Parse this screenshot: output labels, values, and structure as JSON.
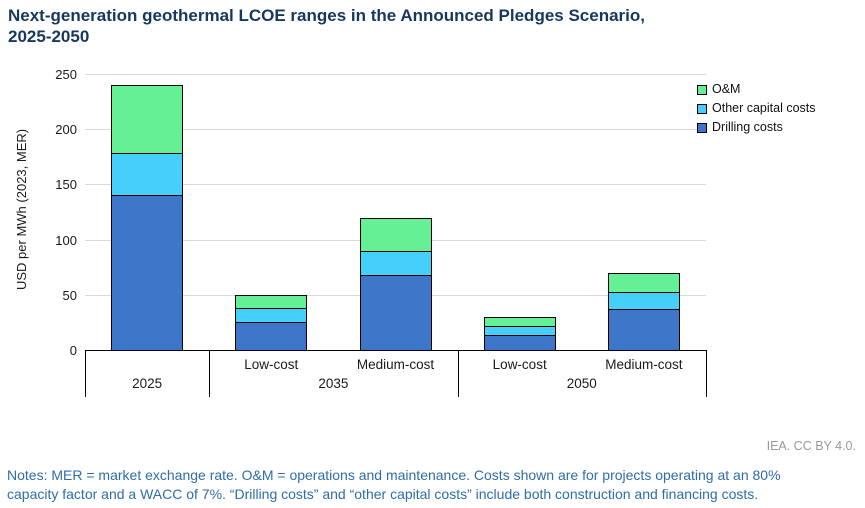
{
  "header": {
    "title_line1": "Next-generation geothermal LCOE ranges in the Announced Pledges Scenario,",
    "title_line2": "2025-2050"
  },
  "chart_data": {
    "type": "bar",
    "stacked": true,
    "title": "Next-generation geothermal LCOE ranges in the Announced Pledges Scenario, 2025-2050",
    "xlabel": "",
    "ylabel": "USD per MWh (2023, MER)",
    "ylim": [
      0,
      250
    ],
    "ytick_interval": 50,
    "grid": "horizontal",
    "legend_position": "top-right",
    "categories": [
      "2025",
      "2035 Low-cost",
      "2035 Medium-cost",
      "2050 Low-cost",
      "2050 Medium-cost"
    ],
    "series": [
      {
        "name": "Drilling costs",
        "color": "#3D76C8",
        "values": [
          140,
          25,
          68,
          14,
          37
        ]
      },
      {
        "name": "Other capital costs",
        "color": "#45D0FC",
        "values": [
          38,
          13,
          22,
          8,
          16
        ]
      },
      {
        "name": "O&M",
        "color": "#66F096",
        "values": [
          62,
          12,
          30,
          8,
          17
        ]
      }
    ],
    "totals": [
      240,
      50,
      120,
      30,
      70
    ],
    "x_groups": [
      {
        "label": "2025",
        "sublabels": []
      },
      {
        "label": "2035",
        "sublabels": [
          "Low-cost",
          "Medium-cost"
        ]
      },
      {
        "label": "2050",
        "sublabels": [
          "Low-cost",
          "Medium-cost"
        ]
      }
    ],
    "colors": {
      "grid": "#D9D9D9",
      "axis": "#000000",
      "bar_border": "#000000",
      "tick_text": "#1A1A1A"
    }
  },
  "footer": {
    "credit": "IEA. CC BY 4.0.",
    "notes_line1": "Notes: MER = market exchange rate. O&M = operations and maintenance. Costs shown are for projects operating at an 80%",
    "notes_line2": "capacity factor and a WACC of 7%. “Drilling costs” and “other capital costs” include both construction and financing costs."
  },
  "theme": {
    "title_color": "#17375E",
    "notes_color": "#2E6DA8",
    "credit_color": "#999999"
  }
}
